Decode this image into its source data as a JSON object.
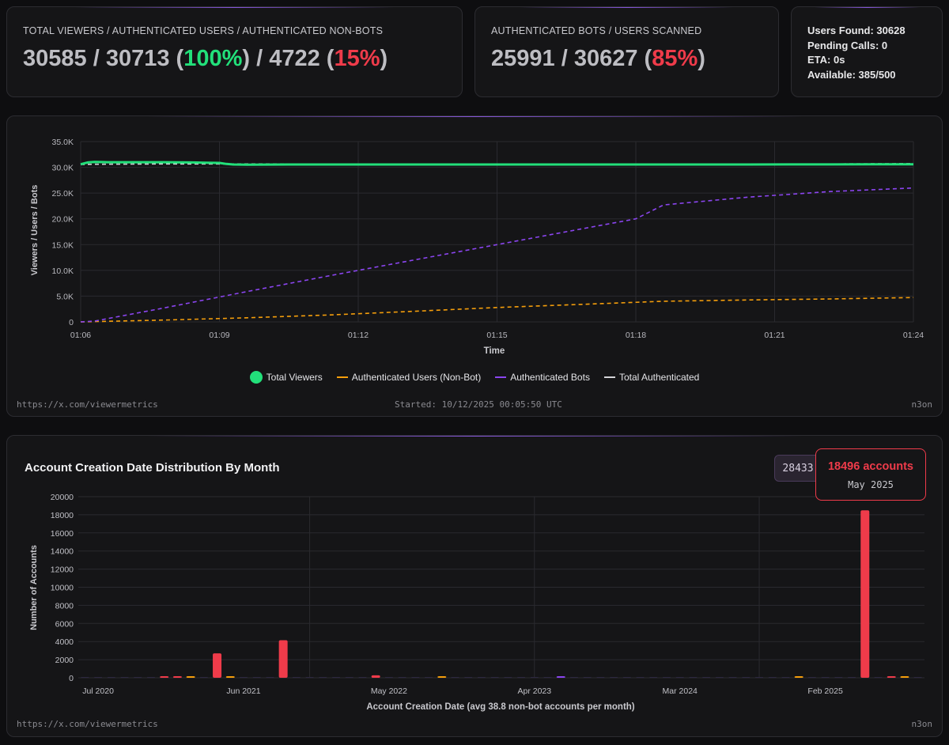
{
  "stats": {
    "viewers": {
      "label": "Total viewers / Authenticated users / Authenticated non-bots",
      "total_viewers": "30585",
      "authenticated_users": "30713",
      "authenticated_pct": "100%",
      "non_bots": "4722",
      "non_bots_pct": "15%"
    },
    "bots": {
      "label": "Authenticated bots / Users scanned",
      "authenticated_bots": "25991",
      "users_scanned": "30627",
      "bots_pct": "85%"
    },
    "scan": {
      "users_found": "Users Found: 30628",
      "pending_calls": "Pending Calls: 0",
      "eta": "ETA: 0s",
      "available": "Available: 385/500"
    }
  },
  "colors": {
    "green": "#22e07a",
    "red": "#ef3b4a",
    "orange": "#f59e0b",
    "purple": "#8b45f0",
    "white": "#d4d4d8"
  },
  "footer": {
    "link": "https://x.com/viewermetrics",
    "started": "Started: 10/12/2025 00:05:50 UTC",
    "brand": "n3on"
  },
  "histogram": {
    "title": "Account Creation Date Distribution By Month",
    "badge_value": "28433",
    "tooltip_value": "18496 accounts",
    "tooltip_date": "May 2025"
  },
  "chart_data": [
    {
      "type": "line",
      "xlabel": "Time",
      "ylabel": "Viewers / Users / Bots",
      "x_ticks": [
        "01:06",
        "01:09",
        "01:12",
        "01:15",
        "01:18",
        "01:21",
        "01:24"
      ],
      "y_ticks": [
        "0",
        "5.0K",
        "10.0K",
        "15.0K",
        "20.0K",
        "25.0K",
        "30.0K",
        "35.0K"
      ],
      "ylim": [
        0,
        35000
      ],
      "grid": true,
      "legend": "bottom",
      "series": [
        {
          "name": "Total Viewers",
          "style": "solid",
          "color": "#22e07a",
          "x": [
            0,
            0.5,
            1,
            2,
            3,
            4,
            5,
            6,
            7,
            8,
            9,
            10,
            10.5,
            11,
            12,
            15,
            18,
            21,
            24,
            27,
            30,
            33,
            36,
            39,
            42,
            45,
            48,
            51,
            54,
            57,
            60
          ],
          "y": [
            30600,
            30950,
            31050,
            31000,
            31000,
            31000,
            31000,
            31000,
            30980,
            30950,
            30900,
            30850,
            30650,
            30550,
            30520,
            30550,
            30550,
            30550,
            30550,
            30550,
            30550,
            30550,
            30550,
            30550,
            30550,
            30550,
            30550,
            30560,
            30570,
            30580,
            30585
          ]
        },
        {
          "name": "Authenticated Users (Non-Bot)",
          "style": "dashed",
          "color": "#f59e0b",
          "x": [
            0,
            6,
            12,
            18,
            24,
            30,
            36,
            42,
            48,
            54,
            60
          ],
          "y": [
            0,
            350,
            800,
            1350,
            2050,
            2800,
            3400,
            4000,
            4250,
            4450,
            4722
          ]
        },
        {
          "name": "Authenticated Bots",
          "style": "dashed",
          "color": "#8b45f0",
          "x": [
            0,
            1,
            6,
            12,
            18,
            24,
            30,
            36,
            40,
            42,
            48,
            54,
            60
          ],
          "y": [
            0,
            150,
            2700,
            5900,
            9000,
            12000,
            15000,
            18000,
            20000,
            22700,
            24200,
            25300,
            25991
          ]
        },
        {
          "name": "Total Authenticated",
          "style": "dashed",
          "color": "#d4d4d8",
          "x": [
            0,
            1,
            6,
            12,
            18,
            24,
            30,
            36,
            42,
            48,
            54,
            60
          ],
          "y": [
            30550,
            30600,
            30650,
            30650,
            30650,
            30600,
            30550,
            30550,
            30600,
            30620,
            30650,
            30713
          ]
        }
      ]
    },
    {
      "type": "bar",
      "xlabel": "Account Creation Date (avg 38.8 non-bot accounts per month)",
      "ylabel": "Number of Accounts",
      "ylim": [
        0,
        20000
      ],
      "y_ticks": [
        "0",
        "2000",
        "4000",
        "6000",
        "8000",
        "10000",
        "12000",
        "14000",
        "16000",
        "18000",
        "20000"
      ],
      "x_tick_labels": [
        {
          "label": "Jul 2020",
          "month_index": 1
        },
        {
          "label": "Jun 2021",
          "month_index": 12
        },
        {
          "label": "May 2022",
          "month_index": 23
        },
        {
          "label": "Apr 2023",
          "month_index": 34
        },
        {
          "label": "Mar 2024",
          "month_index": 45
        },
        {
          "label": "Feb 2025",
          "month_index": 56
        }
      ],
      "grid": true,
      "bars": [
        {
          "month_index": 6,
          "value": 130,
          "color": "#ef3b4a"
        },
        {
          "month_index": 7,
          "value": 120,
          "color": "#ef3b4a"
        },
        {
          "month_index": 8,
          "value": 90,
          "color": "#f59e0b"
        },
        {
          "month_index": 10,
          "value": 2700,
          "color": "#ef3b4a"
        },
        {
          "month_index": 11,
          "value": 60,
          "color": "#f59e0b"
        },
        {
          "month_index": 15,
          "value": 4150,
          "color": "#ef3b4a"
        },
        {
          "month_index": 22,
          "value": 270,
          "color": "#ef3b4a"
        },
        {
          "month_index": 27,
          "value": 50,
          "color": "#f59e0b"
        },
        {
          "month_index": 36,
          "value": 40,
          "color": "#8b45f0"
        },
        {
          "month_index": 54,
          "value": 60,
          "color": "#f59e0b"
        },
        {
          "month_index": 59,
          "value": 18496,
          "color": "#ef3b4a"
        },
        {
          "month_index": 61,
          "value": 120,
          "color": "#ef3b4a"
        },
        {
          "month_index": 62,
          "value": 60,
          "color": "#f59e0b"
        }
      ]
    }
  ]
}
